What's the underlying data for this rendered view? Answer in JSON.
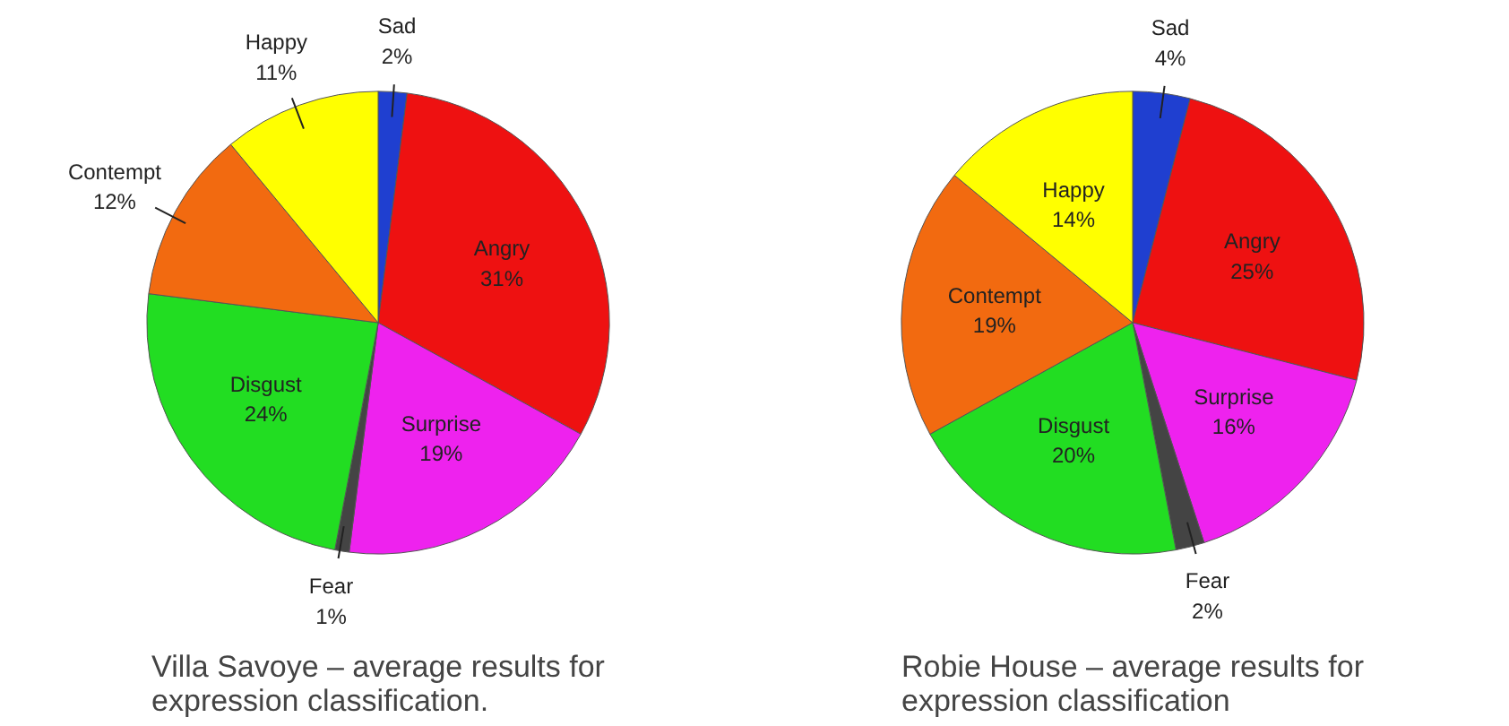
{
  "chart_data": [
    {
      "type": "pie",
      "title": "Villa Savoye – average results for expression classification.",
      "categories": [
        "Sad",
        "Angry",
        "Surprise",
        "Fear",
        "Disgust",
        "Contempt",
        "Happy"
      ],
      "values": [
        2,
        31,
        19,
        1,
        24,
        12,
        11
      ],
      "value_labels": [
        "2%",
        "31%",
        "19%",
        "1%",
        "24%",
        "12%",
        "11%"
      ],
      "colors": [
        "#1f3fd0",
        "#ee1111",
        "#ee22ee",
        "#444444",
        "#22dd22",
        "#f26a10",
        "#ffff00"
      ],
      "legend": false
    },
    {
      "type": "pie",
      "title": "Robie House – average results for expression classification",
      "categories": [
        "Sad",
        "Angry",
        "Surprise",
        "Fear",
        "Disgust",
        "Contempt",
        "Happy"
      ],
      "values": [
        4,
        25,
        16,
        2,
        20,
        19,
        14
      ],
      "value_labels": [
        "4%",
        "25%",
        "16%",
        "2%",
        "20%",
        "19%",
        "14%"
      ],
      "colors": [
        "#1f3fd0",
        "#ee1111",
        "#ee22ee",
        "#444444",
        "#22dd22",
        "#f26a10",
        "#ffff00"
      ],
      "legend": false
    }
  ]
}
